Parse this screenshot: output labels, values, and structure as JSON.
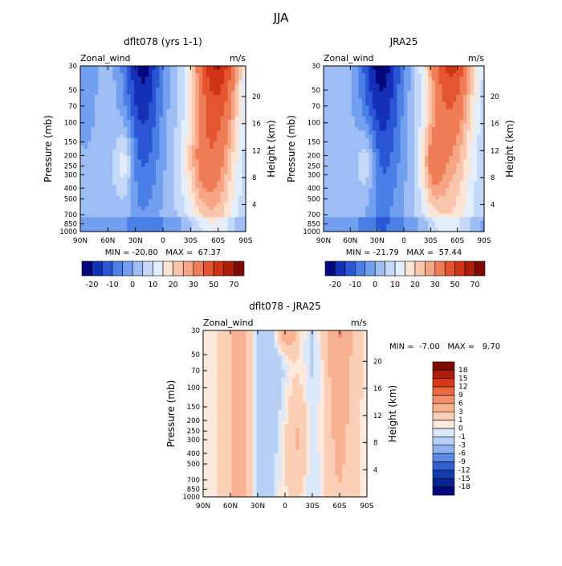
{
  "figure": {
    "title": "JJA",
    "panels": [
      {
        "title": "dflt078 (yrs 1-1)",
        "field_label": "Zonal_wind",
        "units": "m/s",
        "y_left_label": "Pressure (mb)",
        "y_right_label": "Height (km)",
        "stats": "MIN = -20.80   MAX =  67.37"
      },
      {
        "title": "JRA25",
        "field_label": "Zonal_wind",
        "units": "m/s",
        "y_left_label": "Pressure (mb)",
        "y_right_label": "Height (km)",
        "stats": "MIN = -21.79   MAX =  57.44"
      },
      {
        "title": "dflt078 - JRA25",
        "field_label": "Zonal_wind",
        "units": "m/s",
        "y_left_label": "Pressure (mb)",
        "y_right_label": "Height (km)",
        "stats": "MIN =  -7.00   MAX =   9.70"
      }
    ],
    "top_colorbar": {
      "levels": [
        "-20",
        "-10",
        "0",
        "10",
        "20",
        "30",
        "50",
        "70"
      ],
      "colors": [
        "#05087a",
        "#1530b8",
        "#2a56d6",
        "#4a7fe6",
        "#739ff0",
        "#9ebdf5",
        "#c4d8fa",
        "#e3eefc",
        "#fde4d4",
        "#f9c6ad",
        "#f5a584",
        "#ee7c56",
        "#e4552f",
        "#cf3314",
        "#b01d09",
        "#7c0a03"
      ]
    },
    "diff_colorbar": {
      "levels": [
        "18",
        "15",
        "12",
        "9",
        "6",
        "3",
        "1",
        "0",
        "-1",
        "-3",
        "-6",
        "-9",
        "-12",
        "-15",
        "-18"
      ],
      "colors": [
        "#7c0a03",
        "#b01d09",
        "#d8381a",
        "#ee6a3e",
        "#f58e66",
        "#f8b190",
        "#fbcfb6",
        "#fde8dc",
        "#dbe8fb",
        "#b8cff6",
        "#8fb2f0",
        "#5b8ae3",
        "#2f5fd1",
        "#143bb0",
        "#082490",
        "#05087a"
      ]
    },
    "axes": {
      "x_ticks": [
        "90N",
        "60N",
        "30N",
        "0",
        "30S",
        "60S",
        "90S"
      ],
      "p_ticks": [
        "30",
        "50",
        "70",
        "100",
        "150",
        "200",
        "250",
        "300",
        "400",
        "500",
        "700",
        "850",
        "1000"
      ],
      "h_ticks": [
        "4",
        "8",
        "12",
        "16",
        "20"
      ]
    }
  },
  "chart_data": [
    {
      "type": "heatmap",
      "title": "dflt078 (yrs 1-1)",
      "variable": "Zonal_wind",
      "units": "m/s",
      "x": [
        "90N",
        "60N",
        "30N",
        "0",
        "30S",
        "60S",
        "90S"
      ],
      "pressure_levels_mb": [
        30,
        50,
        70,
        100,
        150,
        200,
        250,
        300,
        400,
        500,
        700,
        850,
        1000
      ],
      "height_km_ticks": [
        4,
        8,
        12,
        16,
        20
      ],
      "min": -20.8,
      "max": 67.37,
      "contour_levels": [
        -20,
        -10,
        0,
        10,
        20,
        30,
        50,
        70
      ]
    },
    {
      "type": "heatmap",
      "title": "JRA25",
      "variable": "Zonal_wind",
      "units": "m/s",
      "x": [
        "90N",
        "60N",
        "30N",
        "0",
        "30S",
        "60S",
        "90S"
      ],
      "pressure_levels_mb": [
        30,
        50,
        70,
        100,
        150,
        200,
        250,
        300,
        400,
        500,
        700,
        850,
        1000
      ],
      "height_km_ticks": [
        4,
        8,
        12,
        16,
        20
      ],
      "min": -21.79,
      "max": 57.44,
      "contour_levels": [
        -20,
        -10,
        0,
        10,
        20,
        30,
        50,
        70
      ]
    },
    {
      "type": "heatmap",
      "title": "dflt078 - JRA25",
      "variable": "Zonal_wind",
      "units": "m/s",
      "x": [
        "90N",
        "60N",
        "30N",
        "0",
        "30S",
        "60S",
        "90S"
      ],
      "pressure_levels_mb": [
        30,
        50,
        70,
        100,
        150,
        200,
        250,
        300,
        400,
        500,
        700,
        850,
        1000
      ],
      "height_km_ticks": [
        4,
        8,
        12,
        16,
        20
      ],
      "min": -7.0,
      "max": 9.7,
      "contour_levels": [
        -18,
        -15,
        -12,
        -9,
        -6,
        -3,
        -1,
        0,
        1,
        3,
        6,
        9,
        12,
        15,
        18
      ]
    }
  ]
}
